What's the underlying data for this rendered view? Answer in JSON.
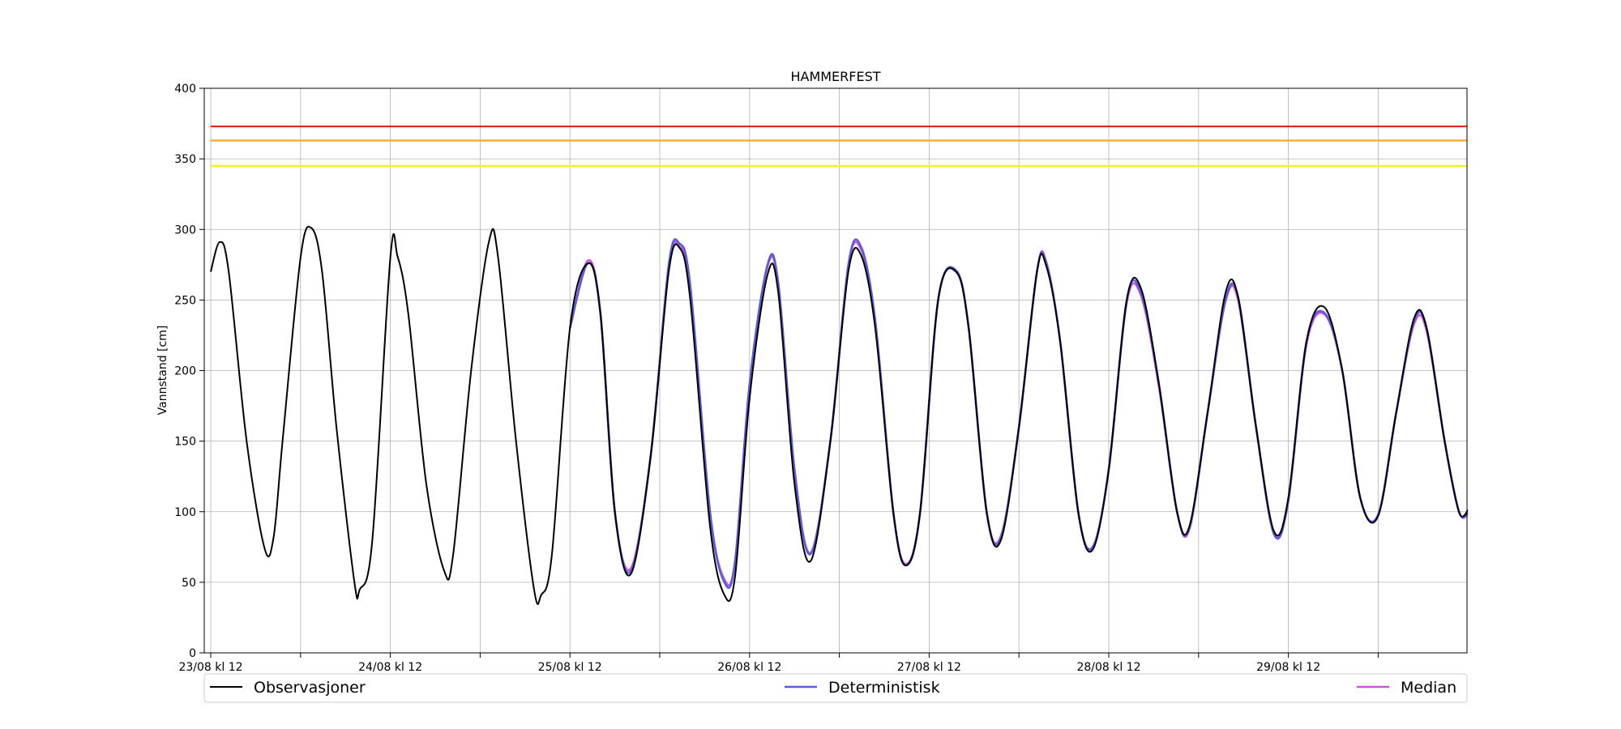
{
  "chart_data": {
    "type": "line",
    "title": "HAMMERFEST",
    "ylabel": "Vannstand [cm]",
    "xlabel": "",
    "ylim": [
      0,
      400
    ],
    "yticks": [
      0,
      50,
      100,
      150,
      200,
      250,
      300,
      350,
      400
    ],
    "xlim": [
      0,
      7
    ],
    "x_unit": "days since 23/08 kl 12",
    "xtick_labels": [
      "23/08 kl 12",
      "24/08 kl 12",
      "25/08 kl 12",
      "26/08 kl 12",
      "27/08 kl 12",
      "28/08 kl 12",
      "29/08 kl 12"
    ],
    "grid": true,
    "legend": "bottom",
    "thresholds": [
      {
        "value": 373,
        "color": "#e8231a"
      },
      {
        "value": 363,
        "color": "#f5a623"
      },
      {
        "value": 345,
        "color": "#f5f01a"
      }
    ],
    "series": [
      {
        "name": "Observasjoner",
        "color": "#000000",
        "points": [
          [
            0.0,
            270
          ],
          [
            0.05,
            291
          ],
          [
            0.1,
            270
          ],
          [
            0.2,
            150
          ],
          [
            0.3,
            74
          ],
          [
            0.35,
            82
          ],
          [
            0.4,
            150
          ],
          [
            0.5,
            280
          ],
          [
            0.56,
            301
          ],
          [
            0.62,
            270
          ],
          [
            0.7,
            160
          ],
          [
            0.8,
            50
          ],
          [
            0.83,
            45
          ],
          [
            0.9,
            80
          ],
          [
            1.0,
            280
          ],
          [
            1.04,
            281
          ],
          [
            1.1,
            240
          ],
          [
            1.2,
            120
          ],
          [
            1.3,
            58
          ],
          [
            1.35,
            70
          ],
          [
            1.45,
            200
          ],
          [
            1.55,
            292
          ],
          [
            1.6,
            280
          ],
          [
            1.7,
            150
          ],
          [
            1.8,
            45
          ],
          [
            1.84,
            41
          ],
          [
            1.9,
            70
          ],
          [
            2.0,
            230
          ],
          [
            2.1,
            276
          ],
          [
            2.17,
            240
          ],
          [
            2.25,
            100
          ],
          [
            2.34,
            56
          ],
          [
            2.45,
            140
          ],
          [
            2.55,
            270
          ],
          [
            2.61,
            287
          ],
          [
            2.67,
            250
          ],
          [
            2.78,
            90
          ],
          [
            2.86,
            41
          ],
          [
            2.92,
            55
          ],
          [
            3.0,
            180
          ],
          [
            3.1,
            268
          ],
          [
            3.16,
            255
          ],
          [
            3.25,
            120
          ],
          [
            3.34,
            65
          ],
          [
            3.45,
            150
          ],
          [
            3.55,
            270
          ],
          [
            3.62,
            282
          ],
          [
            3.7,
            230
          ],
          [
            3.8,
            100
          ],
          [
            3.87,
            62
          ],
          [
            3.95,
            100
          ],
          [
            4.05,
            250
          ],
          [
            4.15,
            270
          ],
          [
            4.22,
            230
          ],
          [
            4.32,
            100
          ],
          [
            4.4,
            80
          ],
          [
            4.5,
            160
          ],
          [
            4.6,
            270
          ],
          [
            4.65,
            275
          ],
          [
            4.73,
            220
          ],
          [
            4.83,
            100
          ],
          [
            4.91,
            73
          ],
          [
            5.0,
            130
          ],
          [
            5.1,
            250
          ],
          [
            5.18,
            258
          ],
          [
            5.28,
            190
          ],
          [
            5.38,
            100
          ],
          [
            5.45,
            90
          ],
          [
            5.55,
            170
          ],
          [
            5.65,
            255
          ],
          [
            5.72,
            252
          ],
          [
            5.82,
            160
          ],
          [
            5.92,
            86
          ],
          [
            6.0,
            110
          ],
          [
            6.1,
            220
          ],
          [
            6.2,
            245
          ],
          [
            6.3,
            200
          ],
          [
            6.4,
            110
          ],
          [
            6.5,
            97
          ],
          [
            6.6,
            170
          ],
          [
            6.7,
            237
          ],
          [
            6.77,
            230
          ],
          [
            6.87,
            150
          ],
          [
            6.95,
            100
          ],
          [
            7.0,
            101
          ]
        ]
      },
      {
        "name": "Deterministisk",
        "color": "#5b5bd6",
        "points": [
          [
            2.0,
            230
          ],
          [
            2.1,
            276
          ],
          [
            2.17,
            240
          ],
          [
            2.25,
            100
          ],
          [
            2.34,
            58
          ],
          [
            2.45,
            140
          ],
          [
            2.55,
            275
          ],
          [
            2.61,
            290
          ],
          [
            2.67,
            260
          ],
          [
            2.78,
            100
          ],
          [
            2.86,
            50
          ],
          [
            2.92,
            65
          ],
          [
            3.0,
            190
          ],
          [
            3.1,
            275
          ],
          [
            3.16,
            262
          ],
          [
            3.25,
            130
          ],
          [
            3.34,
            70
          ],
          [
            3.45,
            150
          ],
          [
            3.55,
            275
          ],
          [
            3.62,
            288
          ],
          [
            3.7,
            235
          ],
          [
            3.8,
            100
          ],
          [
            3.87,
            62
          ],
          [
            3.95,
            100
          ],
          [
            4.05,
            250
          ],
          [
            4.15,
            271
          ],
          [
            4.22,
            230
          ],
          [
            4.32,
            100
          ],
          [
            4.4,
            82
          ],
          [
            4.5,
            160
          ],
          [
            4.6,
            270
          ],
          [
            4.65,
            277
          ],
          [
            4.73,
            220
          ],
          [
            4.83,
            100
          ],
          [
            4.91,
            75
          ],
          [
            5.0,
            130
          ],
          [
            5.1,
            250
          ],
          [
            5.18,
            255
          ],
          [
            5.28,
            190
          ],
          [
            5.38,
            100
          ],
          [
            5.45,
            89
          ],
          [
            5.55,
            170
          ],
          [
            5.65,
            250
          ],
          [
            5.72,
            252
          ],
          [
            5.82,
            160
          ],
          [
            5.92,
            84
          ],
          [
            6.0,
            108
          ],
          [
            6.1,
            220
          ],
          [
            6.2,
            241
          ],
          [
            6.3,
            200
          ],
          [
            6.4,
            110
          ],
          [
            6.5,
            98
          ],
          [
            6.6,
            170
          ],
          [
            6.7,
            235
          ],
          [
            6.77,
            230
          ],
          [
            6.87,
            150
          ],
          [
            6.95,
            100
          ],
          [
            7.0,
            99
          ]
        ]
      },
      {
        "name": "Median",
        "color": "#cc55dd",
        "points": [
          [
            2.0,
            230
          ],
          [
            2.1,
            278
          ],
          [
            2.17,
            240
          ],
          [
            2.25,
            100
          ],
          [
            2.34,
            60
          ],
          [
            2.45,
            140
          ],
          [
            2.55,
            274
          ],
          [
            2.61,
            288
          ],
          [
            2.67,
            258
          ],
          [
            2.78,
            100
          ],
          [
            2.86,
            52
          ],
          [
            2.92,
            66
          ],
          [
            3.0,
            190
          ],
          [
            3.1,
            274
          ],
          [
            3.16,
            260
          ],
          [
            3.25,
            130
          ],
          [
            3.34,
            71
          ],
          [
            3.45,
            150
          ],
          [
            3.55,
            274
          ],
          [
            3.62,
            286
          ],
          [
            3.7,
            235
          ],
          [
            3.8,
            100
          ],
          [
            3.87,
            63
          ],
          [
            3.95,
            100
          ],
          [
            4.05,
            250
          ],
          [
            4.15,
            270
          ],
          [
            4.22,
            230
          ],
          [
            4.32,
            100
          ],
          [
            4.4,
            83
          ],
          [
            4.5,
            160
          ],
          [
            4.6,
            270
          ],
          [
            4.65,
            278
          ],
          [
            4.73,
            220
          ],
          [
            4.83,
            100
          ],
          [
            4.91,
            74
          ],
          [
            5.0,
            130
          ],
          [
            5.1,
            248
          ],
          [
            5.18,
            253
          ],
          [
            5.28,
            188
          ],
          [
            5.38,
            100
          ],
          [
            5.45,
            88
          ],
          [
            5.55,
            170
          ],
          [
            5.65,
            249
          ],
          [
            5.72,
            250
          ],
          [
            5.82,
            160
          ],
          [
            5.92,
            85
          ],
          [
            6.0,
            108
          ],
          [
            6.1,
            218
          ],
          [
            6.2,
            240
          ],
          [
            6.3,
            200
          ],
          [
            6.4,
            110
          ],
          [
            6.5,
            98
          ],
          [
            6.6,
            170
          ],
          [
            6.7,
            233
          ],
          [
            6.77,
            228
          ],
          [
            6.87,
            150
          ],
          [
            6.95,
            100
          ],
          [
            7.0,
            98
          ]
        ]
      }
    ]
  }
}
